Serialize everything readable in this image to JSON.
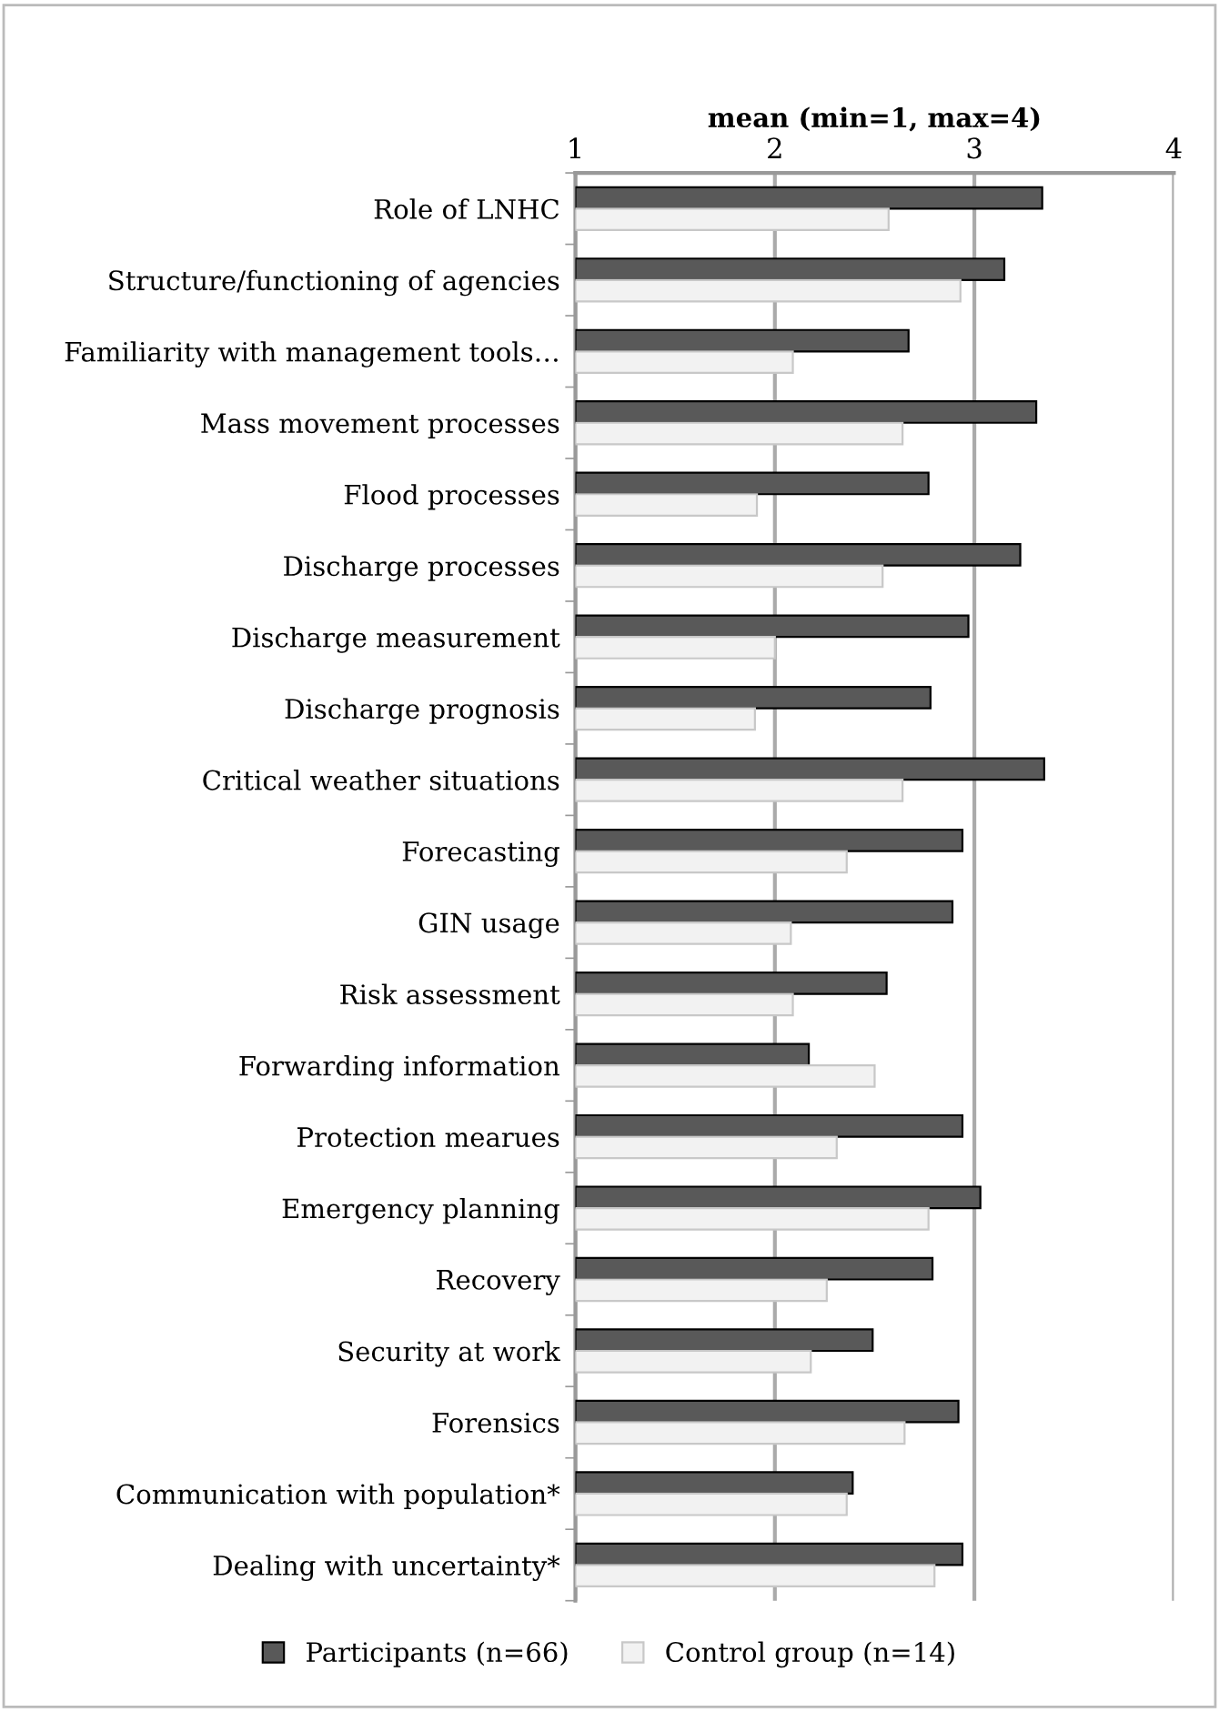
{
  "chart_data": {
    "type": "bar",
    "orientation": "horizontal",
    "xlabel": "mean (min=1, max=4)",
    "categories": [
      "Role of LNHC",
      "Structure/functioning of agencies",
      "Familiarity with management tools…",
      "Mass movement processes",
      "Flood processes",
      "Discharge processes",
      "Discharge measurement",
      "Discharge prognosis",
      "Critical weather situations",
      "Forecasting",
      "GIN usage",
      "Risk assessment",
      "Forwarding information",
      "Protection mearues",
      "Emergency planning",
      "Recovery",
      "Security at work",
      "Forensics",
      "Communication with population*",
      "Dealing with uncertainty*"
    ],
    "series": [
      {
        "name": "Participants (n=66)",
        "color": "#595959",
        "values": [
          3.34,
          3.15,
          2.67,
          3.31,
          2.77,
          3.23,
          2.97,
          2.78,
          3.35,
          2.94,
          2.89,
          2.56,
          2.17,
          2.94,
          3.03,
          2.79,
          2.49,
          2.92,
          2.39,
          2.94
        ]
      },
      {
        "name": "Control group (n=14)",
        "color": "#f2f2f2",
        "values": [
          2.57,
          2.93,
          2.09,
          2.64,
          1.91,
          2.54,
          2.0,
          1.9,
          2.64,
          2.36,
          2.08,
          2.09,
          2.5,
          2.31,
          2.77,
          2.26,
          2.18,
          2.65,
          2.36,
          2.8
        ]
      }
    ],
    "xlim": [
      1,
      4
    ],
    "xticks": [
      1,
      2,
      3,
      4
    ],
    "grid": "x",
    "legend": "bottom"
  }
}
